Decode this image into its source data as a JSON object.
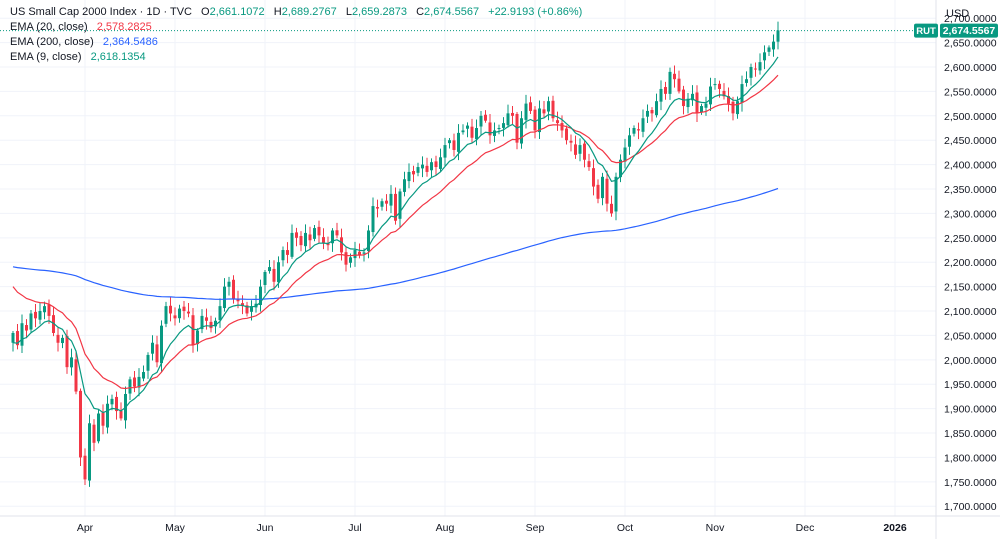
{
  "header": {
    "symbol_title": "US Small Cap 2000 Index · 1D · TVC",
    "o_label": "O",
    "o_value": "2,661.1072",
    "h_label": "H",
    "h_value": "2,689.2767",
    "l_label": "L",
    "l_value": "2,659.2873",
    "c_label": "C",
    "c_value": "2,674.5567",
    "change": "+22.9193 (+0.86%)",
    "ema20_label": "EMA (20, close)",
    "ema20_value": "2,578.2825",
    "ema200_label": "EMA (200, close)",
    "ema200_value": "2,364.5486",
    "ema9_label": "EMA (9, close)",
    "ema9_value": "2,618.1354"
  },
  "price_axis": {
    "unit": "USD",
    "ticker_badge": "RUT",
    "last_price_badge": "2,674.5567"
  },
  "colors": {
    "up": "#089981",
    "down": "#f23645",
    "ema20": "#f23645",
    "ema200": "#2962ff",
    "ema9": "#089981"
  },
  "chart_data": {
    "type": "candlestick",
    "title": "US Small Cap 2000 Index · 1D · TVC",
    "ylim": [
      1680,
      2725
    ],
    "y_ticks": [
      1700,
      1750,
      1800,
      1850,
      1900,
      1950,
      2000,
      2050,
      2100,
      2150,
      2200,
      2250,
      2300,
      2350,
      2400,
      2450,
      2500,
      2550,
      2600,
      2650,
      2700
    ],
    "y_tick_labels": [
      "1,700.0000",
      "1,750.0000",
      "1,800.0000",
      "1,850.0000",
      "1,900.0000",
      "1,950.0000",
      "2,000.0000",
      "2,050.0000",
      "2,100.0000",
      "2,150.0000",
      "2,200.0000",
      "2,250.0000",
      "2,300.0000",
      "2,350.0000",
      "2,400.0000",
      "2,450.0000",
      "2,500.0000",
      "2,550.0000",
      "2,600.0000",
      "2,650.0000",
      "2,700.0000"
    ],
    "x_labels": [
      {
        "label": "Apr",
        "index": 16
      },
      {
        "label": "May",
        "index": 36
      },
      {
        "label": "Jun",
        "index": 56
      },
      {
        "label": "Jul",
        "index": 76
      },
      {
        "label": "Aug",
        "index": 96
      },
      {
        "label": "Sep",
        "index": 116
      },
      {
        "label": "Oct",
        "index": 136
      },
      {
        "label": "Nov",
        "index": 156
      },
      {
        "label": "Dec",
        "index": 176
      },
      {
        "label": "2026",
        "index": 196
      }
    ],
    "last_price": 2674.5567,
    "closes": [
      2055,
      2030,
      2075,
      2060,
      2095,
      2085,
      2100,
      2110,
      2090,
      2055,
      2035,
      2045,
      1985,
      2005,
      1935,
      1800,
      1755,
      1870,
      1830,
      1890,
      1865,
      1910,
      1920,
      1895,
      1880,
      1930,
      1960,
      1945,
      1965,
      1975,
      2010,
      2035,
      1995,
      2070,
      2110,
      2095,
      2085,
      2105,
      2100,
      2095,
      2030,
      2060,
      2090,
      2080,
      2065,
      2080,
      2110,
      2150,
      2160,
      2125,
      2120,
      2110,
      2095,
      2110,
      2115,
      2150,
      2180,
      2190,
      2160,
      2200,
      2225,
      2215,
      2260,
      2250,
      2235,
      2260,
      2245,
      2270,
      2255,
      2240,
      2235,
      2265,
      2255,
      2220,
      2195,
      2210,
      2225,
      2215,
      2220,
      2265,
      2315,
      2310,
      2325,
      2320,
      2340,
      2285,
      2345,
      2370,
      2385,
      2380,
      2395,
      2400,
      2385,
      2405,
      2395,
      2415,
      2440,
      2450,
      2430,
      2465,
      2470,
      2480,
      2455,
      2475,
      2500,
      2490,
      2460,
      2470,
      2475,
      2485,
      2505,
      2500,
      2445,
      2495,
      2525,
      2510,
      2470,
      2515,
      2505,
      2530,
      2495,
      2485,
      2470,
      2450,
      2445,
      2420,
      2440,
      2410,
      2395,
      2355,
      2330,
      2375,
      2320,
      2300,
      2375,
      2410,
      2435,
      2460,
      2475,
      2470,
      2495,
      2510,
      2505,
      2530,
      2555,
      2545,
      2590,
      2575,
      2550,
      2520,
      2535,
      2545,
      2505,
      2520,
      2525,
      2560,
      2565,
      2555,
      2540,
      2525,
      2505,
      2530,
      2565,
      2575,
      2600,
      2595,
      2610,
      2630,
      2640,
      2652,
      2675
    ]
  }
}
